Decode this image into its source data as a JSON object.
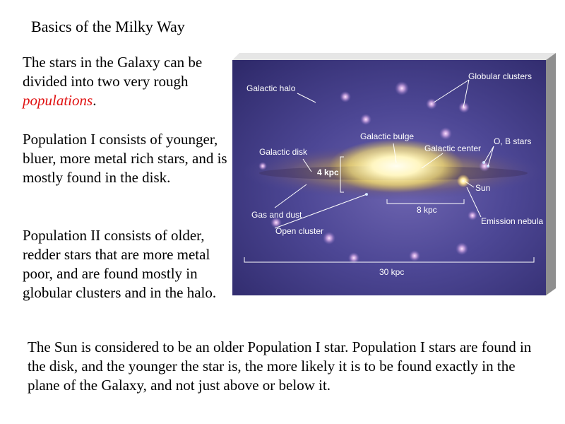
{
  "slide": {
    "title": "Basics of the Milky Way",
    "intro": {
      "before": "The stars in the Galaxy can be divided into two very rough ",
      "emphasis": "populations",
      "after": "."
    },
    "pop1": "Population I consists of younger, bluer, more metal rich stars, and is mostly found in the disk.",
    "pop2": "Population II consists of older, redder stars that are more metal poor, and are found mostly in globular clusters and in the halo.",
    "bottom": "The Sun is considered to be an older Population I star.  Population I stars are found in the disk, and the younger the star is, the more likely it is to be found exactly in the plane of the Galaxy, and not just above or below it."
  },
  "figure": {
    "labels": {
      "galactic_halo": "Galactic halo",
      "globular_clusters": "Globular clusters",
      "galactic_bulge": "Galactic bulge",
      "galactic_center": "Galactic center",
      "ob_stars": "O, B stars",
      "galactic_disk": "Galactic disk",
      "four_kpc": "4 kpc",
      "sun": "Sun",
      "eight_kpc": "8 kpc",
      "gas_and_dust": "Gas and dust",
      "emission_nebula": "Emission nebula",
      "open_cluster": "Open cluster",
      "thirty_kpc": "30 kpc"
    }
  },
  "colors": {
    "emphasis": "#e01010",
    "background_deep": "#3a3478",
    "bulge_core": "#fffbe0",
    "frame_edge": "#bdbdbd"
  }
}
